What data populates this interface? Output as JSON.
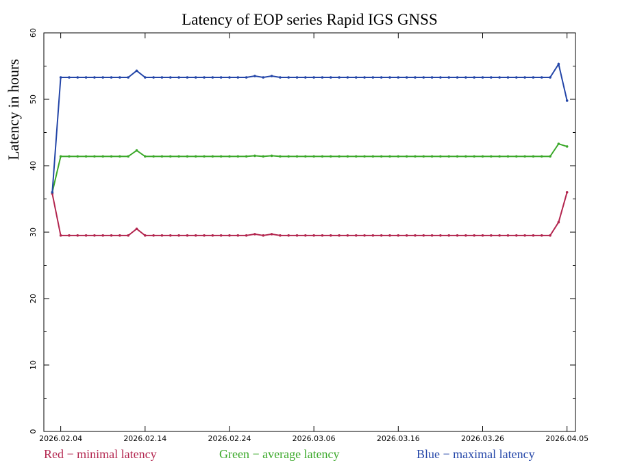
{
  "chart_data": {
    "type": "line",
    "title": "Latency of EOP  series Rapid IGS GNSS",
    "y_label": "Latency in hours",
    "x": [
      "2026.02.03",
      "2026.02.04",
      "2026.02.05",
      "2026.02.06",
      "2026.02.07",
      "2026.02.08",
      "2026.02.09",
      "2026.02.10",
      "2026.02.11",
      "2026.02.12",
      "2026.02.13",
      "2026.02.14",
      "2026.02.15",
      "2026.02.16",
      "2026.02.17",
      "2026.02.18",
      "2026.02.19",
      "2026.02.20",
      "2026.02.21",
      "2026.02.22",
      "2026.02.23",
      "2026.02.24",
      "2026.02.25",
      "2026.02.26",
      "2026.02.27",
      "2026.02.28",
      "2026.03.01",
      "2026.03.02",
      "2026.03.03",
      "2026.03.04",
      "2026.03.05",
      "2026.03.06",
      "2026.03.07",
      "2026.03.08",
      "2026.03.09",
      "2026.03.10",
      "2026.03.11",
      "2026.03.12",
      "2026.03.13",
      "2026.03.14",
      "2026.03.15",
      "2026.03.16",
      "2026.03.17",
      "2026.03.18",
      "2026.03.19",
      "2026.03.20",
      "2026.03.21",
      "2026.03.22",
      "2026.03.23",
      "2026.03.24",
      "2026.03.25",
      "2026.03.26",
      "2026.03.27",
      "2026.03.28",
      "2026.03.29",
      "2026.03.30",
      "2026.03.31",
      "2026.04.01",
      "2026.04.02",
      "2026.04.03",
      "2026.04.04",
      "2026.04.05"
    ],
    "series": [
      {
        "name": "Red − minimal latency",
        "color": "#b3264f",
        "values": [
          35.8,
          29.5,
          29.5,
          29.5,
          29.5,
          29.5,
          29.5,
          29.5,
          29.5,
          29.5,
          30.5,
          29.5,
          29.5,
          29.5,
          29.5,
          29.5,
          29.5,
          29.5,
          29.5,
          29.5,
          29.5,
          29.5,
          29.5,
          29.5,
          29.7,
          29.5,
          29.7,
          29.5,
          29.5,
          29.5,
          29.5,
          29.5,
          29.5,
          29.5,
          29.5,
          29.5,
          29.5,
          29.5,
          29.5,
          29.5,
          29.5,
          29.5,
          29.5,
          29.5,
          29.5,
          29.5,
          29.5,
          29.5,
          29.5,
          29.5,
          29.5,
          29.5,
          29.5,
          29.5,
          29.5,
          29.5,
          29.5,
          29.5,
          29.5,
          29.5,
          31.5,
          36
        ]
      },
      {
        "name": "Green − average latency",
        "color": "#3aa829",
        "values": [
          36,
          41.4,
          41.4,
          41.4,
          41.4,
          41.4,
          41.4,
          41.4,
          41.4,
          41.4,
          42.3,
          41.4,
          41.4,
          41.4,
          41.4,
          41.4,
          41.4,
          41.4,
          41.4,
          41.4,
          41.4,
          41.4,
          41.4,
          41.4,
          41.5,
          41.4,
          41.5,
          41.4,
          41.4,
          41.4,
          41.4,
          41.4,
          41.4,
          41.4,
          41.4,
          41.4,
          41.4,
          41.4,
          41.4,
          41.4,
          41.4,
          41.4,
          41.4,
          41.4,
          41.4,
          41.4,
          41.4,
          41.4,
          41.4,
          41.4,
          41.4,
          41.4,
          41.4,
          41.4,
          41.4,
          41.4,
          41.4,
          41.4,
          41.4,
          41.4,
          43.3,
          42.9
        ]
      },
      {
        "name": "Blue − maximal latency",
        "color": "#2446a8",
        "values": [
          36,
          53.3,
          53.3,
          53.3,
          53.3,
          53.3,
          53.3,
          53.3,
          53.3,
          53.3,
          54.3,
          53.3,
          53.3,
          53.3,
          53.3,
          53.3,
          53.3,
          53.3,
          53.3,
          53.3,
          53.3,
          53.3,
          53.3,
          53.3,
          53.5,
          53.3,
          53.5,
          53.3,
          53.3,
          53.3,
          53.3,
          53.3,
          53.3,
          53.3,
          53.3,
          53.3,
          53.3,
          53.3,
          53.3,
          53.3,
          53.3,
          53.3,
          53.3,
          53.3,
          53.3,
          53.3,
          53.3,
          53.3,
          53.3,
          53.3,
          53.3,
          53.3,
          53.3,
          53.3,
          53.3,
          53.3,
          53.3,
          53.3,
          53.3,
          53.3,
          55.3,
          49.8
        ]
      }
    ],
    "xlim": [
      "2026.02.02",
      "2026.04.06"
    ],
    "xticks": [
      "2026.02.04",
      "2026.02.14",
      "2026.02.24",
      "2026.03.06",
      "2026.03.16",
      "2026.03.26",
      "2026.04.05"
    ],
    "ylim": [
      0,
      60
    ],
    "yticks": [
      0,
      10,
      20,
      30,
      40,
      50,
      60
    ],
    "yminorticks": [
      5,
      15,
      25,
      35,
      45,
      55
    ]
  }
}
